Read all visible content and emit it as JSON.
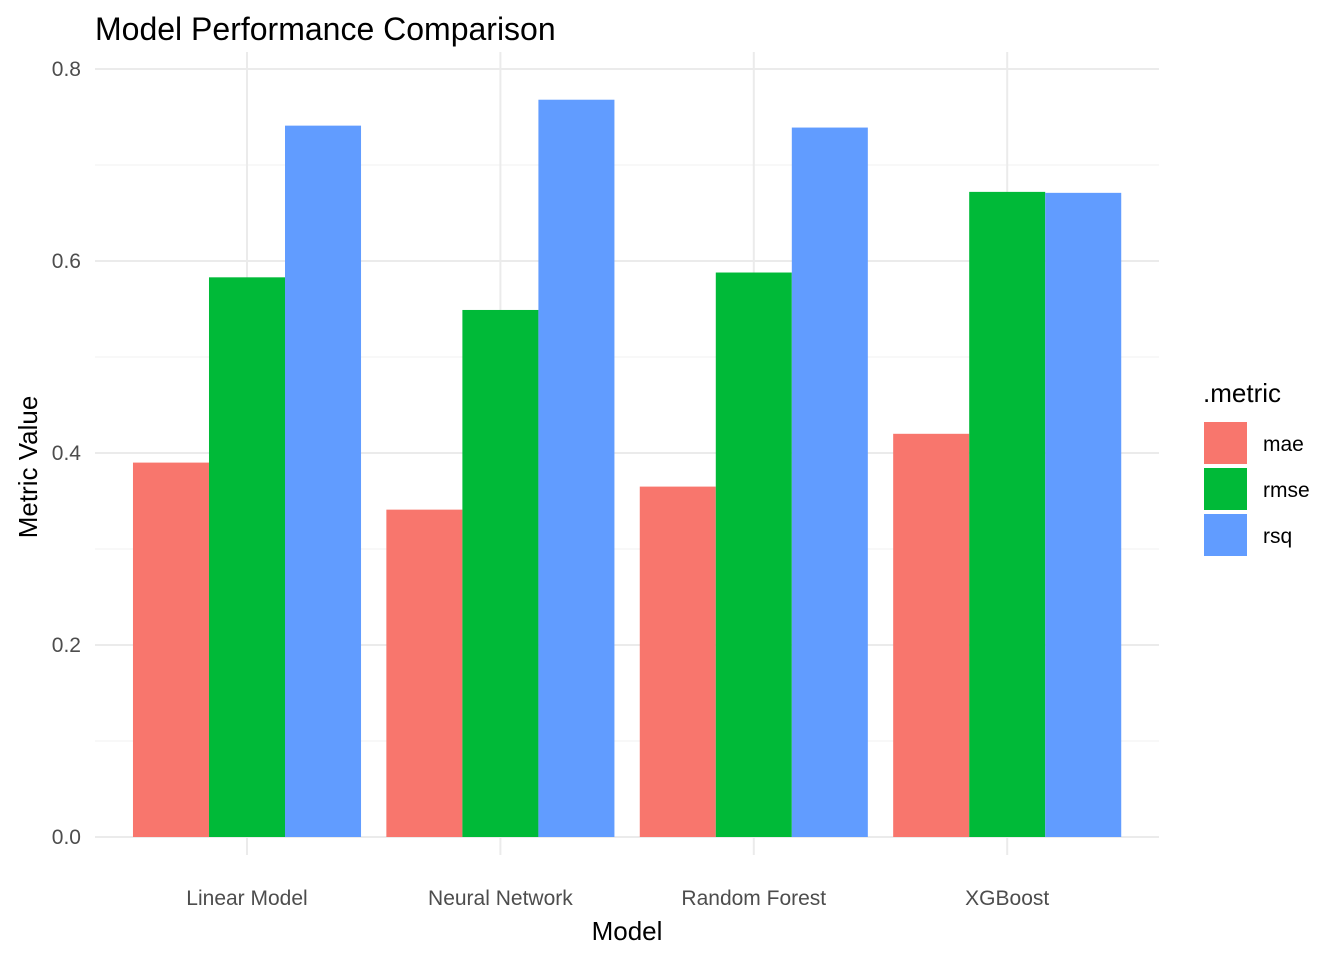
{
  "chart_data": {
    "type": "bar",
    "title": "Model Performance Comparison",
    "xlabel": "Model",
    "ylabel": "Metric Value",
    "categories": [
      "Linear Model",
      "Neural Network",
      "Random Forest",
      "XGBoost"
    ],
    "series": [
      {
        "name": "mae",
        "color": "#F8766D",
        "values": [
          0.39,
          0.341,
          0.365,
          0.42
        ]
      },
      {
        "name": "rmse",
        "color": "#00BA38",
        "values": [
          0.583,
          0.549,
          0.588,
          0.672
        ]
      },
      {
        "name": "rsq",
        "color": "#619CFF",
        "values": [
          0.741,
          0.768,
          0.739,
          0.671
        ]
      }
    ],
    "ylim": [
      0,
      0.8
    ],
    "yticks": [
      "0.0",
      "0.2",
      "0.4",
      "0.6",
      "0.8"
    ],
    "ytick_values": [
      0,
      0.2,
      0.4,
      0.6,
      0.8
    ],
    "legend_title": ".metric",
    "legend_position": "right",
    "grid": true
  }
}
